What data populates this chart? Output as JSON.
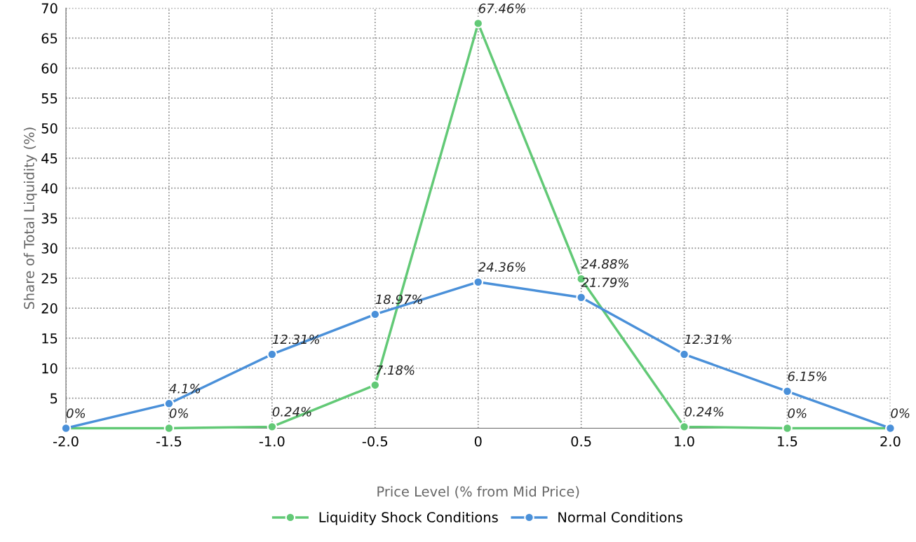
{
  "chart_data": {
    "type": "line",
    "xlabel": "Price Level (% from Mid Price)",
    "ylabel": "Share of Total Liquidity (%)",
    "x": [
      -2.0,
      -1.5,
      -1.0,
      -0.5,
      0,
      0.5,
      1.0,
      1.5,
      2.0
    ],
    "xlim": [
      -2.0,
      2.0
    ],
    "xticks": [
      {
        "value": -2.0,
        "label": "-2.0"
      },
      {
        "value": -1.5,
        "label": "-1.5"
      },
      {
        "value": -1.0,
        "label": "-1.0"
      },
      {
        "value": -0.5,
        "label": "-0.5"
      },
      0,
      0.5,
      {
        "value": 1.0,
        "label": "1.0"
      },
      1.5,
      {
        "value": 2.0,
        "label": "2.0"
      }
    ],
    "ylim": [
      0,
      70
    ],
    "yticks": [
      5,
      10,
      15,
      20,
      25,
      30,
      35,
      40,
      45,
      50,
      55,
      60,
      65,
      70
    ],
    "grid": true,
    "legend": "bottom",
    "marker": "circle",
    "line_style": "solid",
    "series": [
      {
        "name": "Liquidity Shock Conditions",
        "color": "#62c976",
        "values": [
          0,
          0,
          0.24,
          7.18,
          67.46,
          24.88,
          0.24,
          0,
          0
        ],
        "value_labels": [
          "0%",
          "0%",
          "0.24%",
          "7.18%",
          "67.46%",
          "24.88%",
          "0.24%",
          "0%",
          "0%"
        ]
      },
      {
        "name": "Normal Conditions",
        "color": "#4a90d9",
        "values": [
          0,
          4.1,
          12.31,
          18.97,
          24.36,
          21.79,
          12.31,
          6.15,
          0
        ],
        "value_labels": [
          null,
          "4.1%",
          "12.31%",
          "18.97%",
          "24.36%",
          "21.79%",
          "12.31%",
          "6.15%",
          null
        ]
      }
    ]
  }
}
